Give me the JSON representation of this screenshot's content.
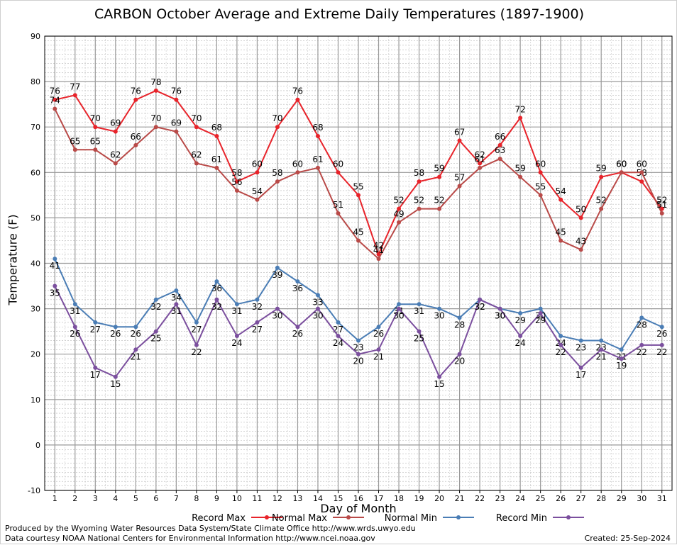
{
  "chart_data": {
    "type": "line",
    "title": "CARBON October Average and Extreme Daily Temperatures (1897-1900)",
    "xlabel": "Day of Month",
    "ylabel": "Temperature (F)",
    "ylim": [
      -10,
      90
    ],
    "yticks": [
      -10,
      0,
      10,
      20,
      30,
      40,
      50,
      60,
      70,
      80,
      90
    ],
    "x": [
      1,
      2,
      3,
      4,
      5,
      6,
      7,
      8,
      9,
      10,
      11,
      12,
      13,
      14,
      15,
      16,
      17,
      18,
      19,
      20,
      21,
      22,
      23,
      24,
      25,
      26,
      27,
      28,
      29,
      30,
      31
    ],
    "grid": true,
    "legend_position": "bottom",
    "series": [
      {
        "name": "Record Max",
        "color": "#e8232a",
        "values": [
          76,
          77,
          70,
          69,
          76,
          78,
          76,
          70,
          68,
          58,
          60,
          70,
          76,
          68,
          60,
          55,
          42,
          52,
          58,
          59,
          67,
          62,
          66,
          72,
          60,
          54,
          50,
          59,
          60,
          58,
          52
        ]
      },
      {
        "name": "Normal Max",
        "color": "#b94a48",
        "values": [
          74,
          65,
          65,
          62,
          66,
          70,
          69,
          62,
          61,
          56,
          54,
          58,
          60,
          61,
          51,
          45,
          41,
          49,
          52,
          52,
          57,
          61,
          63,
          59,
          55,
          45,
          43,
          52,
          60,
          60,
          51
        ]
      },
      {
        "name": "Normal Min",
        "color": "#4a7db5",
        "values": [
          41,
          31,
          27,
          26,
          26,
          32,
          34,
          27,
          36,
          31,
          32,
          39,
          36,
          33,
          27,
          23,
          26,
          31,
          31,
          30,
          28,
          32,
          30,
          29,
          30,
          24,
          23,
          23,
          21,
          28,
          26
        ]
      },
      {
        "name": "Record Min",
        "color": "#7b4f9e",
        "values": [
          35,
          26,
          17,
          15,
          21,
          25,
          31,
          22,
          32,
          24,
          27,
          30,
          26,
          30,
          24,
          20,
          21,
          30,
          25,
          15,
          20,
          32,
          30,
          24,
          29,
          22,
          17,
          21,
          19,
          22,
          22
        ]
      }
    ]
  },
  "footer": {
    "produced_by": "Produced by the Wyoming Water Resources Data System/State Climate Office http://www.wrds.uwyo.edu",
    "courtesy": "Data courtesy NOAA National Centers for Environmental Information http://www.ncei.noaa.gov",
    "created": "Created:  25-Sep-2024"
  }
}
